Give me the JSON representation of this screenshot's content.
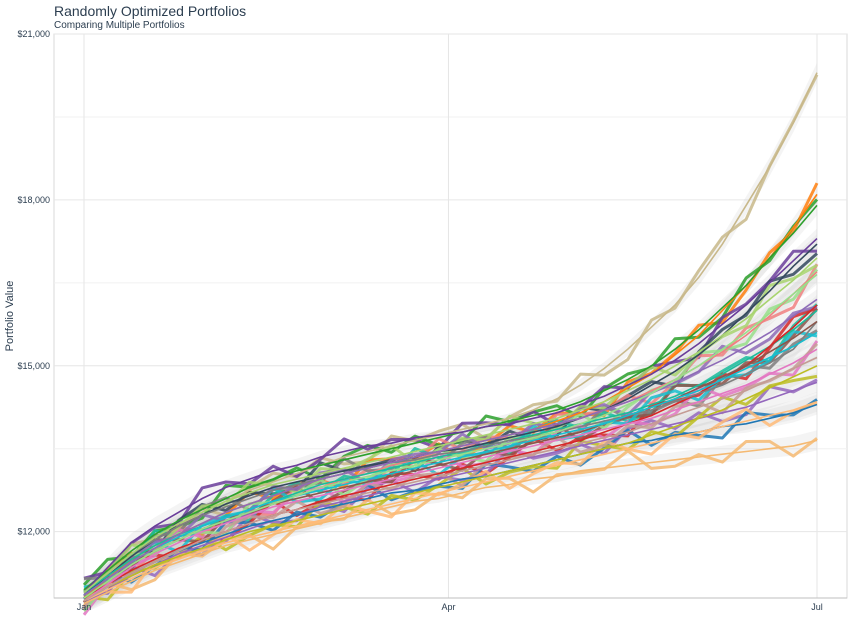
{
  "chart_data": {
    "type": "line",
    "title": "Randomly Optimized Portfolios",
    "subtitle": "Comparing Multiple Portfolios",
    "xlabel": "",
    "ylabel": "Portfolio Value",
    "x_range": [
      "2018-01-01",
      "2018-07-01"
    ],
    "ylim": [
      10800,
      21000
    ],
    "x_ticks": [
      {
        "date": "2018-01-01",
        "label": "Jan"
      },
      {
        "date": "2018-04-01",
        "label": "Apr"
      },
      {
        "date": "2018-07-01",
        "label": "Jul"
      }
    ],
    "y_ticks": [
      {
        "value": 12000,
        "label": "$12,000"
      },
      {
        "value": 15000,
        "label": "$15,000"
      },
      {
        "value": 18000,
        "label": "$18,000"
      },
      {
        "value": 21000,
        "label": "$21,000"
      }
    ],
    "grid": true,
    "legend": "none",
    "smoothing_band_color": "#cccccc",
    "series": [
      {
        "color": "#c8b88a",
        "values": [
          10850,
          11200,
          11550,
          11850,
          12100,
          12350,
          12550,
          12750,
          12900,
          13050,
          13200,
          13350,
          13450,
          13550,
          13650,
          13750,
          13850,
          13950,
          14050,
          14200,
          14400,
          14650,
          14950,
          15300,
          15700,
          16100,
          16600,
          17200,
          17900,
          18600,
          19400,
          20300
        ]
      },
      {
        "color": "#ff7f0e",
        "values": [
          10800,
          11150,
          11500,
          11750,
          11950,
          12150,
          12350,
          12500,
          12650,
          12800,
          12950,
          13050,
          13150,
          13250,
          13350,
          13450,
          13550,
          13650,
          13750,
          13850,
          14000,
          14150,
          14350,
          14600,
          14850,
          15200,
          15550,
          16000,
          16450,
          16950,
          17500,
          18100
        ]
      },
      {
        "color": "#2ca02c",
        "values": [
          10950,
          11300,
          11650,
          11950,
          12200,
          12400,
          12600,
          12800,
          12950,
          13100,
          13200,
          13300,
          13400,
          13500,
          13600,
          13700,
          13800,
          13900,
          14000,
          14100,
          14200,
          14350,
          14550,
          14750,
          15000,
          15300,
          15650,
          16050,
          16450,
          16950,
          17400,
          17900
        ]
      },
      {
        "color": "#6a3d9a",
        "values": [
          10900,
          11350,
          11800,
          12100,
          12350,
          12600,
          12800,
          12950,
          13100,
          13200,
          13350,
          13450,
          13550,
          13600,
          13700,
          13750,
          13800,
          13900,
          13950,
          14050,
          14150,
          14300,
          14450,
          14650,
          14850,
          15100,
          15400,
          15750,
          16100,
          16500,
          16900,
          17300
        ]
      },
      {
        "color": "#34495e",
        "values": [
          10850,
          11200,
          11550,
          11850,
          12100,
          12300,
          12500,
          12650,
          12800,
          12900,
          13000,
          13100,
          13200,
          13250,
          13350,
          13450,
          13500,
          13600,
          13700,
          13800,
          13900,
          14050,
          14200,
          14400,
          14650,
          14900,
          15200,
          15550,
          15950,
          16350,
          16800,
          17200
        ]
      },
      {
        "color": "#f08080",
        "values": [
          10800,
          11100,
          11400,
          11650,
          11850,
          12050,
          12200,
          12350,
          12500,
          12650,
          12800,
          12950,
          13050,
          13200,
          13300,
          13450,
          13550,
          13650,
          13750,
          13850,
          13950,
          14050,
          14200,
          14350,
          14550,
          14750,
          15000,
          15250,
          15550,
          15900,
          16300,
          16700
        ]
      },
      {
        "color": "#1abc9c",
        "values": [
          10900,
          11200,
          11500,
          11750,
          11950,
          12100,
          12250,
          12400,
          12550,
          12700,
          12850,
          12950,
          13050,
          13150,
          13250,
          13350,
          13450,
          13550,
          13650,
          13750,
          13850,
          13950,
          14050,
          14150,
          14300,
          14450,
          14650,
          14850,
          15100,
          15350,
          15650,
          16000
        ]
      },
      {
        "color": "#d62728",
        "values": [
          10800,
          11050,
          11300,
          11500,
          11700,
          11850,
          12000,
          12150,
          12300,
          12400,
          12550,
          12650,
          12750,
          12850,
          12950,
          13050,
          13150,
          13250,
          13350,
          13450,
          13550,
          13650,
          13800,
          13950,
          14100,
          14300,
          14500,
          14750,
          15000,
          15350,
          15700,
          16100
        ]
      },
      {
        "color": "#9467bd",
        "values": [
          10700,
          10950,
          11200,
          11400,
          11600,
          11750,
          11900,
          12050,
          12200,
          12300,
          12450,
          12550,
          12650,
          12750,
          12850,
          12950,
          13050,
          13150,
          13250,
          13350,
          13450,
          13550,
          13650,
          13750,
          13850,
          13950,
          14050,
          14150,
          14250,
          14400,
          14550,
          14700
        ]
      },
      {
        "color": "#1f77b4",
        "values": [
          10750,
          11000,
          11250,
          11450,
          11650,
          11800,
          11950,
          12100,
          12200,
          12300,
          12400,
          12500,
          12600,
          12700,
          12750,
          12850,
          12950,
          13000,
          13100,
          13200,
          13300,
          13400,
          13500,
          13600,
          13650,
          13750,
          13800,
          13900,
          13950,
          14050,
          14150,
          14300
        ]
      },
      {
        "color": "#7f7f7f",
        "values": [
          10900,
          11250,
          11600,
          11850,
          12100,
          12300,
          12450,
          12600,
          12750,
          12850,
          12950,
          13050,
          13150,
          13250,
          13300,
          13400,
          13450,
          13550,
          13650,
          13700,
          13800,
          13900,
          14000,
          14100,
          14200,
          14350,
          14500,
          14650,
          14850,
          15050,
          15300,
          15800
        ]
      },
      {
        "color": "#bcbd22",
        "values": [
          10800,
          11000,
          11200,
          11400,
          11550,
          11700,
          11850,
          12000,
          12100,
          12200,
          12300,
          12400,
          12500,
          12600,
          12700,
          12800,
          12900,
          13000,
          13100,
          13200,
          13300,
          13400,
          13500,
          13600,
          13750,
          13900,
          14050,
          14200,
          14400,
          14600,
          14800,
          15000
        ]
      },
      {
        "color": "#e377c2",
        "values": [
          10750,
          11050,
          11350,
          11600,
          11800,
          12000,
          12150,
          12300,
          12450,
          12550,
          12650,
          12750,
          12850,
          12950,
          13050,
          13150,
          13250,
          13350,
          13450,
          13550,
          13650,
          13750,
          13850,
          13950,
          14050,
          14200,
          14350,
          14500,
          14650,
          14850,
          15050,
          15300
        ]
      },
      {
        "color": "#8c564b",
        "values": [
          10800,
          11100,
          11400,
          11650,
          11850,
          12050,
          12200,
          12350,
          12500,
          12600,
          12700,
          12800,
          12900,
          13000,
          13100,
          13200,
          13300,
          13400,
          13500,
          13600,
          13700,
          13800,
          13950,
          14100,
          14250,
          14400,
          14600,
          14800,
          15000,
          15250,
          15500,
          15800
        ]
      },
      {
        "color": "#17becf",
        "values": [
          10850,
          11150,
          11450,
          11700,
          11900,
          12100,
          12250,
          12400,
          12550,
          12650,
          12750,
          12850,
          12950,
          13050,
          13150,
          13250,
          13350,
          13450,
          13550,
          13650,
          13750,
          13850,
          13950,
          14100,
          14250,
          14400,
          14550,
          14750,
          14950,
          15150,
          15350,
          15600
        ]
      },
      {
        "color": "#a8d46f",
        "values": [
          10900,
          11250,
          11600,
          11900,
          12150,
          12350,
          12550,
          12700,
          12850,
          12950,
          13050,
          13150,
          13250,
          13350,
          13450,
          13550,
          13650,
          13750,
          13850,
          13950,
          14050,
          14200,
          14350,
          14550,
          14750,
          15000,
          15250,
          15550,
          15850,
          16200,
          16550,
          16950
        ]
      },
      {
        "color": "#f5b971",
        "values": [
          10700,
          10900,
          11100,
          11300,
          11450,
          11600,
          11750,
          11850,
          11950,
          12050,
          12150,
          12250,
          12350,
          12450,
          12550,
          12600,
          12700,
          12800,
          12850,
          12950,
          13000,
          13100,
          13150,
          13200,
          13250,
          13300,
          13350,
          13400,
          13450,
          13500,
          13550,
          13650
        ]
      },
      {
        "color": "#ffbb78",
        "values": [
          10750,
          10950,
          11150,
          11350,
          11500,
          11650,
          11800,
          11900,
          12000,
          12100,
          12200,
          12300,
          12400,
          12500,
          12600,
          12700,
          12800,
          12900,
          13000,
          13100,
          13200,
          13300,
          13400,
          13500,
          13600,
          13700,
          13800,
          13900,
          14000,
          14100,
          14200,
          14350
        ]
      },
      {
        "color": "#8e6bb8",
        "values": [
          10850,
          11150,
          11450,
          11700,
          11950,
          12150,
          12350,
          12500,
          12650,
          12800,
          12950,
          13050,
          13150,
          13250,
          13350,
          13450,
          13550,
          13650,
          13750,
          13850,
          13950,
          14050,
          14200,
          14350,
          14500,
          14700,
          14900,
          15100,
          15350,
          15600,
          15900,
          16200
        ]
      },
      {
        "color": "#98df8a",
        "values": [
          10800,
          11100,
          11400,
          11650,
          11850,
          12050,
          12200,
          12350,
          12500,
          12650,
          12800,
          12900,
          13000,
          13100,
          13200,
          13300,
          13400,
          13500,
          13600,
          13700,
          13800,
          13950,
          14100,
          14300,
          14500,
          14750,
          15000,
          15300,
          15600,
          15950,
          16300,
          16650
        ]
      },
      {
        "color": "#c49c94",
        "values": [
          10750,
          11000,
          11250,
          11450,
          11650,
          11850,
          12000,
          12150,
          12300,
          12400,
          12500,
          12600,
          12700,
          12800,
          12900,
          13000,
          13100,
          13200,
          13300,
          13400,
          13500,
          13600,
          13700,
          13800,
          13950,
          14100,
          14250,
          14400,
          14550,
          14750,
          14950,
          15150
        ]
      }
    ]
  }
}
